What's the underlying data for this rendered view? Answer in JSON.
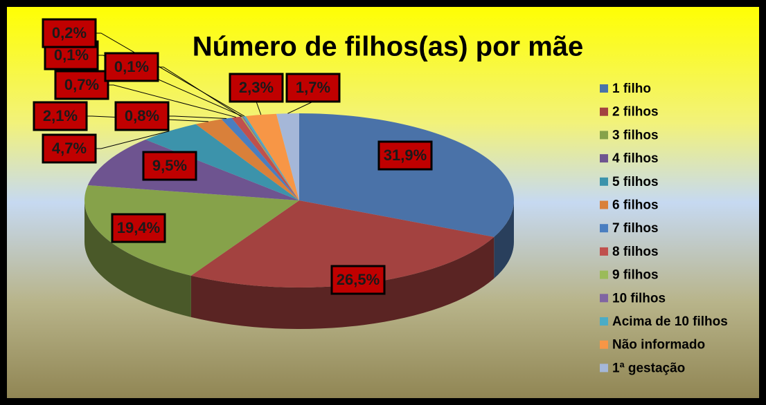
{
  "chart_data": {
    "type": "pie",
    "title": "Número de filhos(as) por mãe",
    "categories": [
      "1 filho",
      "2 filhos",
      "3 filhos",
      "4 filhos",
      "5 filhos",
      "6 filhos",
      "7 filhos",
      "8 filhos",
      "9 filhos",
      "10 filhos",
      "Acima de 10 filhos",
      "Não informado",
      "1ª gestação"
    ],
    "values": [
      31.9,
      26.5,
      19.4,
      9.5,
      4.7,
      2.1,
      0.8,
      0.7,
      0.1,
      0.1,
      0.2,
      2.3,
      1.7
    ],
    "value_labels": [
      "31,9%",
      "26,5%",
      "19,4%",
      "9,5%",
      "4,7%",
      "2,1%",
      "0,8%",
      "0,7%",
      "0,1%",
      "0,1%",
      "0,2%",
      "2,3%",
      "1,7%"
    ],
    "colors": [
      "#4a72a8",
      "#a34240",
      "#86a24a",
      "#6e5490",
      "#3c93ab",
      "#d9803a",
      "#4a7ec0",
      "#c0504d",
      "#9bbb59",
      "#8064a2",
      "#4bacc6",
      "#f79646",
      "#a5b7d8"
    ],
    "legend": "right"
  }
}
